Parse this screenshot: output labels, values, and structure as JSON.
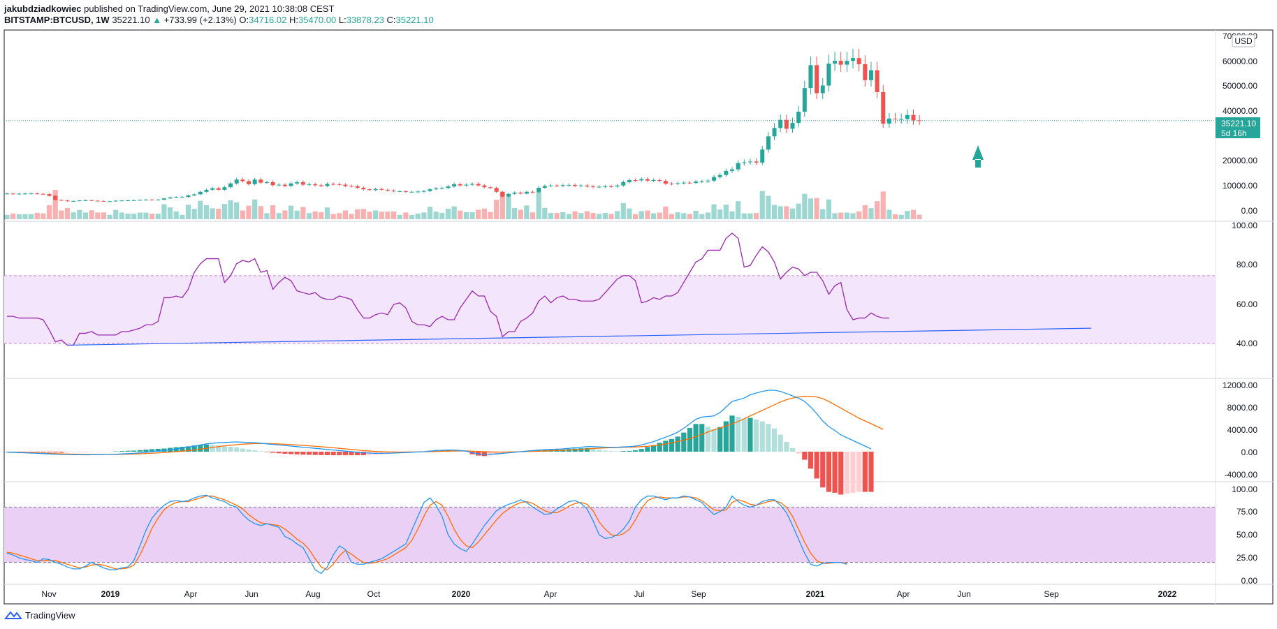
{
  "header": {
    "publisher": "jakubdziadkowiec",
    "published_text": "published on TradingView.com, June 29, 2021 10:38:08 CEST",
    "symbol": "BITSTAMP:BTCUSD, 1W",
    "last": "35221.10",
    "change": "+733.99 (+2.13%)",
    "o_label": "O:",
    "o": "34716.02",
    "h_label": "H:",
    "h": "35470.00",
    "l_label": "L:",
    "l": "33878.23",
    "c_label": "C:",
    "c": "35221.10"
  },
  "price_panel": {
    "currency": "USD",
    "price_label": "35221.10",
    "countdown": "5d 16h",
    "ticks": [
      "70000.00",
      "60000.00",
      "50000.00",
      "40000.00",
      "20000.00",
      "10000.00",
      "0.00"
    ]
  },
  "rsi_panel": {
    "ticks": [
      "100.00",
      "80.00",
      "60.00",
      "40.00"
    ]
  },
  "macd_panel": {
    "ticks": [
      "12000.00",
      "8000.00",
      "4000.00",
      "0.00",
      "-4000.00"
    ]
  },
  "stoch_panel": {
    "ticks": [
      "100.00",
      "75.00",
      "50.00",
      "25.00",
      "0.00"
    ]
  },
  "time_axis": {
    "labels": [
      "Nov",
      "2019",
      "Apr",
      "Jun",
      "Aug",
      "Oct",
      "2020",
      "Apr",
      "Jul",
      "Sep",
      "2021",
      "Apr",
      "Jun",
      "Sep",
      "2022"
    ]
  },
  "footer": {
    "brand": "TradingView"
  },
  "colors": {
    "up": "#26a69a",
    "down": "#ef5350",
    "rsi": "#9c27b0",
    "trend": "#2962ff",
    "macd": "#2196f3",
    "signal": "#ff6d00",
    "band": "#e1bee7"
  },
  "chart_data": [
    {
      "type": "candlestick",
      "title": "BITSTAMP:BTCUSD, 1W",
      "x_start": "2018-09-17",
      "x_step": "1 week",
      "close": [
        6500,
        6400,
        6450,
        6500,
        6550,
        6400,
        6300,
        5600,
        4000,
        3800,
        3500,
        3600,
        3800,
        3900,
        3700,
        3600,
        3500,
        3500,
        3700,
        3800,
        3850,
        3900,
        4000,
        4100,
        4050,
        4100,
        4600,
        5000,
        5200,
        5200,
        5800,
        6200,
        7200,
        8000,
        8600,
        8000,
        9000,
        10500,
        12000,
        11400,
        10200,
        12000,
        10800,
        11000,
        9800,
        10000,
        9500,
        10500,
        11000,
        10000,
        10200,
        9800,
        9500,
        10300,
        10200,
        10000,
        9500,
        9400,
        8800,
        8200,
        7900,
        8300,
        8000,
        7700,
        7400,
        7400,
        7200,
        7200,
        7300,
        7500,
        8200,
        8500,
        8700,
        9300,
        10200,
        9700,
        10000,
        10300,
        9700,
        9000,
        8700,
        7200,
        5300,
        6400,
        6900,
        6500,
        7200,
        7000,
        8800,
        9500,
        9700,
        9500,
        9800,
        9900,
        9500,
        9700,
        9300,
        9100,
        9200,
        9400,
        9300,
        9700,
        11000,
        11800,
        11700,
        12200,
        11600,
        11800,
        11500,
        10400,
        10300,
        10600,
        10800,
        10700,
        11200,
        11300,
        11600,
        13000,
        13800,
        15400,
        16000,
        18500,
        18800,
        19100,
        18700,
        23800,
        29000,
        32300,
        35500,
        32000,
        34300,
        38700,
        48000,
        57000,
        46000,
        49000,
        57600,
        58700,
        57200,
        58700,
        59800,
        57400,
        51100,
        55000,
        46400,
        34000,
        36000,
        35800,
        35800,
        37400,
        35300,
        35221
      ],
      "indicator": "Volume",
      "volume_colors": "up/down by candle"
    },
    {
      "type": "line",
      "indicator": "RSI",
      "ylim": [
        30,
        100
      ],
      "overbought": 70,
      "oversold": 30,
      "values": [
        46,
        46,
        45,
        45,
        45,
        45,
        44,
        38,
        31,
        32,
        29,
        29,
        36,
        36,
        37,
        35,
        35,
        35,
        35,
        37,
        37,
        38,
        39,
        41,
        41,
        43,
        57,
        57,
        58,
        57,
        62,
        72,
        77,
        80,
        80,
        80,
        66,
        70,
        77,
        79,
        78,
        80,
        72,
        73,
        62,
        66,
        69,
        67,
        61,
        60,
        59,
        60,
        57,
        56,
        56,
        58,
        57,
        56,
        50,
        45,
        45,
        47,
        48,
        47,
        53,
        54,
        51,
        43,
        41,
        41,
        40,
        44,
        46,
        44,
        44,
        51,
        56,
        61,
        58,
        58,
        49,
        46,
        34,
        37,
        37,
        43,
        45,
        48,
        55,
        58,
        54,
        57,
        58,
        56,
        56,
        55,
        55,
        55,
        56,
        60,
        64,
        68,
        70,
        70,
        67,
        54,
        55,
        57,
        56,
        58,
        58,
        60,
        66,
        72,
        78,
        80,
        85,
        85,
        85,
        92,
        95,
        92,
        75,
        76,
        82,
        87,
        84,
        78,
        68,
        72,
        75,
        74,
        70,
        72,
        72,
        67,
        59,
        64,
        66,
        50,
        44,
        45,
        45,
        48,
        46,
        45,
        45
      ],
      "trendline": {
        "from_value": 29,
        "to_value": 39
      }
    },
    {
      "type": "line",
      "indicator": "MACD",
      "ylim": [
        -5000,
        13000
      ],
      "series": [
        {
          "values": [
            -100,
            -120,
            -150,
            -200,
            -250,
            -300,
            -350,
            -400,
            -450,
            -500,
            -520,
            -540,
            -550,
            -560,
            -550,
            -540,
            -520,
            -500,
            -450,
            -400,
            -350,
            -300,
            -200,
            -100,
            0,
            100,
            200,
            350,
            500,
            650,
            800,
            1000,
            1200,
            1400,
            1500,
            1600,
            1650,
            1700,
            1750,
            1700,
            1650,
            1600,
            1500,
            1400,
            1300,
            1200,
            1100,
            1000,
            900,
            800,
            700,
            600,
            500,
            400,
            300,
            200,
            100,
            0,
            -100,
            -200,
            -250,
            -300,
            -300,
            -280,
            -250,
            -200,
            -150,
            -100,
            -50,
            0,
            100,
            200,
            250,
            300,
            300,
            200,
            100,
            -200,
            -400,
            -500,
            -450,
            -400,
            -300,
            -200,
            -100,
            0,
            100,
            200,
            300,
            350,
            400,
            450,
            500,
            600,
            700,
            800,
            900,
            900,
            850,
            800,
            800,
            800,
            850,
            900,
            1000,
            1200,
            1500,
            1800,
            2200,
            2600,
            3000,
            3500,
            4200,
            5000,
            5800,
            6200,
            6300,
            6400,
            7000,
            8000,
            9000,
            9300,
            9600,
            10200,
            10500,
            10800,
            11000,
            11000,
            10800,
            10400,
            10000,
            9600,
            9000,
            8000,
            6800,
            5500,
            4500,
            3800,
            3000,
            2500,
            2000,
            1500,
            1000,
            500
          ]
        },
        {
          "values": [
            -100,
            -110,
            -130,
            -160,
            -190,
            -230,
            -270,
            -310,
            -350,
            -390,
            -420,
            -450,
            -470,
            -490,
            -500,
            -505,
            -505,
            -500,
            -490,
            -470,
            -450,
            -420,
            -380,
            -330,
            -280,
            -220,
            -150,
            -80,
            0,
            100,
            200,
            300,
            450,
            600,
            750,
            900,
            1050,
            1150,
            1250,
            1350,
            1400,
            1450,
            1450,
            1450,
            1420,
            1380,
            1330,
            1270,
            1200,
            1130,
            1050,
            970,
            880,
            790,
            700,
            600,
            500,
            400,
            300,
            200,
            120,
            50,
            0,
            -30,
            -50,
            -60,
            -60,
            -50,
            -40,
            -20,
            0,
            30,
            60,
            100,
            130,
            140,
            130,
            90,
            40,
            -10,
            -40,
            -60,
            -60,
            -50,
            -30,
            -10,
            20,
            50,
            90,
            130,
            170,
            210,
            250,
            300,
            350,
            420,
            500,
            570,
            630,
            680,
            720,
            750,
            780,
            810,
            850,
            900,
            970,
            1070,
            1200,
            1380,
            1580,
            1810,
            2060,
            2350,
            2700,
            3100,
            3520,
            3900,
            4250,
            4600,
            4960,
            5400,
            5900,
            6420,
            6900,
            7400,
            7900,
            8400,
            8900,
            9300,
            9600,
            9800,
            9900,
            9900,
            9800,
            9500,
            9000,
            8400,
            7800,
            7200,
            6600,
            6000,
            5500,
            5000,
            4500,
            4000
          ]
        }
      ],
      "histogram": "macd minus signal"
    },
    {
      "type": "line",
      "indicator": "Stochastic",
      "ylim": [
        0,
        100
      ],
      "upper_band": 80,
      "lower_band": 20,
      "series": [
        {
          "values": [
            30,
            28,
            25,
            23,
            22,
            20,
            24,
            23,
            20,
            18,
            15,
            13,
            13,
            16,
            20,
            17,
            14,
            12,
            12,
            14,
            15,
            22,
            38,
            55,
            68,
            76,
            82,
            86,
            87,
            86,
            87,
            90,
            92,
            93,
            90,
            88,
            86,
            82,
            80,
            72,
            66,
            62,
            60,
            62,
            60,
            58,
            48,
            45,
            40,
            36,
            24,
            12,
            8,
            15,
            28,
            38,
            34,
            20,
            18,
            18,
            20,
            22,
            24,
            28,
            32,
            36,
            40,
            55,
            70,
            85,
            90,
            82,
            70,
            50,
            40,
            35,
            32,
            40,
            50,
            60,
            68,
            76,
            80,
            83,
            85,
            88,
            85,
            80,
            76,
            72,
            73,
            78,
            82,
            86,
            87,
            84,
            78,
            65,
            50,
            46,
            47,
            50,
            56,
            65,
            80,
            88,
            92,
            92,
            90,
            88,
            90,
            90,
            92,
            91,
            88,
            85,
            78,
            72,
            75,
            80,
            92,
            86,
            82,
            80,
            82,
            86,
            88,
            88,
            82,
            74,
            60,
            45,
            30,
            18,
            16,
            19,
            20,
            20,
            20,
            18
          ]
        },
        {
          "values": [
            31,
            30,
            28,
            26,
            24,
            22,
            22,
            22,
            22,
            20,
            18,
            16,
            14,
            15,
            17,
            18,
            17,
            15,
            13,
            13,
            14,
            17,
            28,
            42,
            57,
            68,
            77,
            82,
            85,
            86,
            86,
            88,
            90,
            92,
            92,
            90,
            88,
            85,
            82,
            78,
            72,
            67,
            63,
            62,
            61,
            60,
            56,
            51,
            45,
            41,
            34,
            24,
            15,
            12,
            18,
            27,
            33,
            29,
            24,
            20,
            19,
            20,
            22,
            24,
            28,
            32,
            36,
            44,
            56,
            70,
            82,
            86,
            82,
            70,
            56,
            45,
            38,
            36,
            42,
            50,
            58,
            66,
            73,
            78,
            82,
            85,
            86,
            84,
            80,
            76,
            74,
            74,
            77,
            81,
            84,
            85,
            83,
            76,
            64,
            56,
            50,
            49,
            51,
            56,
            66,
            78,
            87,
            90,
            91,
            90,
            90,
            90,
            91,
            91,
            90,
            87,
            82,
            77,
            76,
            77,
            85,
            88,
            86,
            83,
            82,
            84,
            86,
            87,
            85,
            80,
            70,
            56,
            42,
            30,
            22,
            19,
            19,
            20,
            20,
            19
          ]
        }
      ]
    }
  ]
}
